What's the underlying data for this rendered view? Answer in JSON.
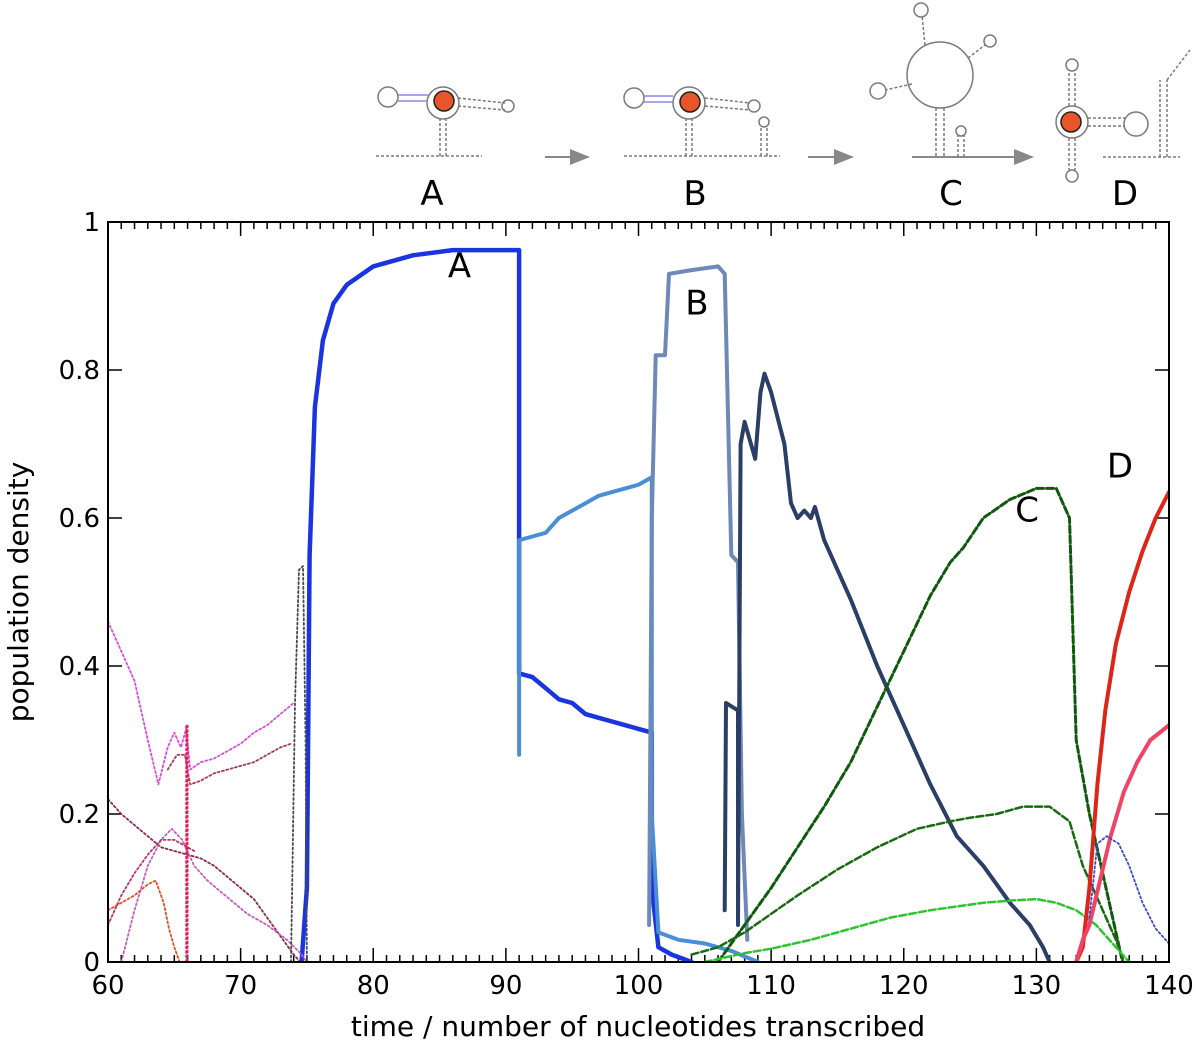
{
  "chart_data": {
    "type": "line",
    "xlabel": "time / number of nucleotides transcribed",
    "ylabel": "population density",
    "xlim": [
      60,
      140
    ],
    "ylim": [
      0,
      1
    ],
    "x_ticks": [
      "60",
      "70",
      "80",
      "90",
      "100",
      "110",
      "120",
      "130",
      "140"
    ],
    "y_ticks": [
      "0",
      "0.2",
      "0.4",
      "0.6",
      "0.8",
      "1"
    ],
    "grid": false,
    "structure_labels": [
      "A",
      "B",
      "C",
      "D"
    ],
    "curve_labels": [
      {
        "text": "A",
        "x": 86.5,
        "y": 0.925
      },
      {
        "text": "B",
        "x": 104.4,
        "y": 0.875
      },
      {
        "text": "C",
        "x": 129.3,
        "y": 0.595
      },
      {
        "text": "D",
        "x": 136.3,
        "y": 0.655
      }
    ],
    "series": [
      {
        "color": "#1a35e0",
        "style": "solid",
        "width": 4.5,
        "points": [
          [
            74.6,
            0
          ],
          [
            75,
            0.1
          ],
          [
            75.2,
            0.55
          ],
          [
            75.6,
            0.75
          ],
          [
            76.2,
            0.84
          ],
          [
            77,
            0.89
          ],
          [
            78,
            0.915
          ],
          [
            80,
            0.94
          ],
          [
            83,
            0.955
          ],
          [
            86,
            0.962
          ],
          [
            91,
            0.962
          ],
          [
            91,
            0.39
          ],
          [
            92,
            0.385
          ],
          [
            93,
            0.37
          ],
          [
            94,
            0.355
          ],
          [
            95,
            0.35
          ],
          [
            96,
            0.335
          ],
          [
            97,
            0.33
          ],
          [
            98,
            0.325
          ],
          [
            99,
            0.32
          ],
          [
            100,
            0.315
          ],
          [
            101,
            0.31
          ],
          [
            101,
            0.1
          ],
          [
            101.5,
            0.02
          ],
          [
            102.5,
            0.01
          ],
          [
            104,
            0
          ]
        ]
      },
      {
        "color": "#4a8fd6",
        "style": "solid",
        "width": 4,
        "points": [
          [
            91,
            0.28
          ],
          [
            91,
            0.57
          ],
          [
            92,
            0.575
          ],
          [
            93,
            0.58
          ],
          [
            94,
            0.6
          ],
          [
            95,
            0.61
          ],
          [
            96,
            0.62
          ],
          [
            97,
            0.63
          ],
          [
            98,
            0.635
          ],
          [
            99,
            0.64
          ],
          [
            100,
            0.645
          ],
          [
            101,
            0.655
          ],
          [
            101,
            0.2
          ],
          [
            101.5,
            0.04
          ],
          [
            103,
            0.03
          ],
          [
            105,
            0.025
          ],
          [
            107,
            0.015
          ],
          [
            109,
            0
          ]
        ]
      },
      {
        "color": "#6e88b8",
        "style": "solid",
        "width": 4,
        "points": [
          [
            100.8,
            0.05
          ],
          [
            101,
            0.6
          ],
          [
            101.3,
            0.82
          ],
          [
            102,
            0.82
          ],
          [
            102.3,
            0.93
          ],
          [
            104,
            0.935
          ],
          [
            106,
            0.94
          ],
          [
            106.5,
            0.93
          ],
          [
            107,
            0.55
          ],
          [
            107.5,
            0.54
          ],
          [
            107.8,
            0.2
          ],
          [
            108.2,
            0.03
          ]
        ]
      },
      {
        "color": "#2a3e66",
        "style": "solid",
        "width": 4,
        "points": [
          [
            106.5,
            0.07
          ],
          [
            106.6,
            0.35
          ],
          [
            107.5,
            0.34
          ],
          [
            107.5,
            0.05
          ],
          [
            107.7,
            0.7
          ],
          [
            108,
            0.73
          ],
          [
            108.8,
            0.68
          ],
          [
            109.2,
            0.77
          ],
          [
            109.5,
            0.795
          ],
          [
            110,
            0.77
          ],
          [
            111,
            0.7
          ],
          [
            111.5,
            0.62
          ],
          [
            112,
            0.6
          ],
          [
            112.5,
            0.61
          ],
          [
            113,
            0.6
          ],
          [
            113.3,
            0.615
          ],
          [
            114,
            0.57
          ],
          [
            116,
            0.49
          ],
          [
            118,
            0.4
          ],
          [
            120,
            0.32
          ],
          [
            122,
            0.24
          ],
          [
            124,
            0.17
          ],
          [
            126,
            0.13
          ],
          [
            128,
            0.08
          ],
          [
            129.5,
            0.05
          ],
          [
            130.5,
            0.02
          ],
          [
            131,
            0
          ]
        ]
      },
      {
        "color": "#0f5a0f",
        "style": "dashed",
        "width": 3,
        "points": [
          [
            106,
            0
          ],
          [
            108,
            0.05
          ],
          [
            110,
            0.1
          ],
          [
            112,
            0.155
          ],
          [
            114,
            0.21
          ],
          [
            116,
            0.27
          ],
          [
            118,
            0.345
          ],
          [
            120,
            0.42
          ],
          [
            122,
            0.495
          ],
          [
            123.5,
            0.54
          ],
          [
            124.5,
            0.56
          ],
          [
            126,
            0.6
          ],
          [
            128,
            0.625
          ],
          [
            130,
            0.64
          ],
          [
            131.5,
            0.64
          ],
          [
            132.5,
            0.6
          ],
          [
            133,
            0.3
          ],
          [
            134,
            0.2
          ],
          [
            135,
            0.12
          ],
          [
            136,
            0.04
          ],
          [
            136.5,
            0
          ]
        ]
      },
      {
        "color": "#1a6a12",
        "style": "dashed",
        "width": 2.5,
        "points": [
          [
            104,
            0.01
          ],
          [
            106,
            0.02
          ],
          [
            108,
            0.04
          ],
          [
            110,
            0.065
          ],
          [
            112,
            0.09
          ],
          [
            115,
            0.125
          ],
          [
            118,
            0.155
          ],
          [
            121,
            0.18
          ],
          [
            123.5,
            0.19
          ],
          [
            125,
            0.195
          ],
          [
            127,
            0.2
          ],
          [
            129,
            0.21
          ],
          [
            131,
            0.21
          ],
          [
            132.5,
            0.19
          ],
          [
            133.5,
            0.13
          ],
          [
            135,
            0.07
          ],
          [
            136,
            0.03
          ],
          [
            136.6,
            0
          ]
        ]
      },
      {
        "color": "#2ec42e",
        "style": "dashed",
        "width": 2.5,
        "points": [
          [
            105,
            0
          ],
          [
            108,
            0.012
          ],
          [
            110,
            0.018
          ],
          [
            113,
            0.03
          ],
          [
            116,
            0.045
          ],
          [
            119,
            0.06
          ],
          [
            122,
            0.07
          ],
          [
            124,
            0.075
          ],
          [
            126,
            0.08
          ],
          [
            128,
            0.083
          ],
          [
            130,
            0.085
          ],
          [
            131.5,
            0.08
          ],
          [
            133,
            0.07
          ],
          [
            134.5,
            0.05
          ],
          [
            136,
            0.02
          ],
          [
            137,
            0
          ]
        ]
      },
      {
        "color": "#dd2518",
        "style": "solid",
        "width": 4,
        "points": [
          [
            133,
            0
          ],
          [
            133.5,
            0.02
          ],
          [
            134,
            0.1
          ],
          [
            134.6,
            0.24
          ],
          [
            135.2,
            0.34
          ],
          [
            136,
            0.43
          ],
          [
            137,
            0.5
          ],
          [
            138,
            0.555
          ],
          [
            139,
            0.6
          ],
          [
            140,
            0.635
          ]
        ]
      },
      {
        "color": "#f04466",
        "style": "solid",
        "width": 4,
        "points": [
          [
            133,
            0
          ],
          [
            133.5,
            0.03
          ],
          [
            134,
            0.05
          ],
          [
            134.8,
            0.11
          ],
          [
            135.6,
            0.17
          ],
          [
            136.6,
            0.23
          ],
          [
            137.6,
            0.27
          ],
          [
            138.6,
            0.3
          ],
          [
            140,
            0.32
          ]
        ]
      },
      {
        "color": "#3a4ccc",
        "style": "dotted",
        "width": 1.8,
        "points": [
          [
            134,
            0.06
          ],
          [
            134.6,
            0.16
          ],
          [
            135.3,
            0.17
          ],
          [
            136.2,
            0.16
          ],
          [
            137,
            0.13
          ],
          [
            138,
            0.08
          ],
          [
            139,
            0.045
          ],
          [
            140,
            0.025
          ]
        ]
      },
      {
        "color": "#d84fd8",
        "style": "dotted",
        "width": 1.8,
        "points": [
          [
            60,
            0.46
          ],
          [
            61,
            0.42
          ],
          [
            62,
            0.38
          ],
          [
            63,
            0.3
          ],
          [
            63.8,
            0.24
          ],
          [
            64.5,
            0.29
          ],
          [
            65,
            0.31
          ],
          [
            65.5,
            0.29
          ],
          [
            65.9,
            0.315
          ],
          [
            66.2,
            0.26
          ],
          [
            67,
            0.27
          ],
          [
            68,
            0.275
          ],
          [
            69,
            0.285
          ],
          [
            70,
            0.295
          ],
          [
            71,
            0.31
          ],
          [
            72,
            0.32
          ],
          [
            73,
            0.335
          ],
          [
            74,
            0.35
          ]
        ]
      },
      {
        "color": "#a83a5a",
        "style": "dotted",
        "width": 1.8,
        "points": [
          [
            64.5,
            0.26
          ],
          [
            65.2,
            0.28
          ],
          [
            65.8,
            0.28
          ],
          [
            66.2,
            0.24
          ],
          [
            67,
            0.245
          ],
          [
            68,
            0.255
          ],
          [
            69,
            0.26
          ],
          [
            70,
            0.265
          ],
          [
            71,
            0.27
          ],
          [
            72,
            0.28
          ],
          [
            73,
            0.29
          ],
          [
            73.8,
            0.295
          ]
        ]
      },
      {
        "color": "#8b2a48",
        "style": "dotted",
        "width": 1.8,
        "points": [
          [
            60,
            0.22
          ],
          [
            61,
            0.2
          ],
          [
            62,
            0.185
          ],
          [
            63,
            0.17
          ],
          [
            64,
            0.155
          ],
          [
            65,
            0.15
          ],
          [
            66,
            0.145
          ],
          [
            67,
            0.14
          ],
          [
            68,
            0.13
          ],
          [
            69,
            0.115
          ],
          [
            70,
            0.1
          ],
          [
            71,
            0.085
          ],
          [
            72,
            0.06
          ],
          [
            73,
            0.035
          ],
          [
            74,
            0.01
          ],
          [
            74.5,
            0
          ]
        ]
      },
      {
        "color": "#c060c0",
        "style": "dotted",
        "width": 1.8,
        "points": [
          [
            61,
            0
          ],
          [
            62,
            0.07
          ],
          [
            63,
            0.13
          ],
          [
            64,
            0.165
          ],
          [
            64.8,
            0.18
          ],
          [
            65.6,
            0.165
          ],
          [
            66.5,
            0.13
          ],
          [
            67.5,
            0.11
          ],
          [
            68.5,
            0.095
          ],
          [
            69.5,
            0.08
          ],
          [
            70.5,
            0.065
          ],
          [
            72,
            0.05
          ],
          [
            73.5,
            0.03
          ],
          [
            74.5,
            0.012
          ],
          [
            75,
            0
          ]
        ]
      },
      {
        "color": "#e0502a",
        "style": "dotted",
        "width": 1.8,
        "points": [
          [
            60,
            0.07
          ],
          [
            61,
            0.08
          ],
          [
            62,
            0.09
          ],
          [
            63,
            0.105
          ],
          [
            63.6,
            0.11
          ],
          [
            64.2,
            0.08
          ],
          [
            64.6,
            0.045
          ],
          [
            65,
            0.02
          ],
          [
            65.4,
            0
          ]
        ]
      },
      {
        "color": "#b8356a",
        "style": "dotted",
        "width": 1.8,
        "points": [
          [
            60,
            0.05
          ],
          [
            61,
            0.09
          ],
          [
            62,
            0.12
          ],
          [
            63,
            0.145
          ],
          [
            64,
            0.165
          ],
          [
            65,
            0.165
          ],
          [
            66,
            0.155
          ],
          [
            66.5,
            0.15
          ]
        ]
      },
      {
        "color": "#4a4a4a",
        "style": "dotted",
        "width": 1.8,
        "points": [
          [
            73.8,
            0
          ],
          [
            74.1,
            0.35
          ],
          [
            74.4,
            0.53
          ],
          [
            74.7,
            0.535
          ],
          [
            74.9,
            0.3
          ],
          [
            75,
            0
          ]
        ]
      },
      {
        "color": "#e0205a",
        "style": "dotted",
        "width": 1.8,
        "points": [
          [
            65.9,
            0
          ],
          [
            65.9,
            0.32
          ],
          [
            66,
            0.32
          ],
          [
            66,
            0
          ]
        ]
      }
    ]
  }
}
